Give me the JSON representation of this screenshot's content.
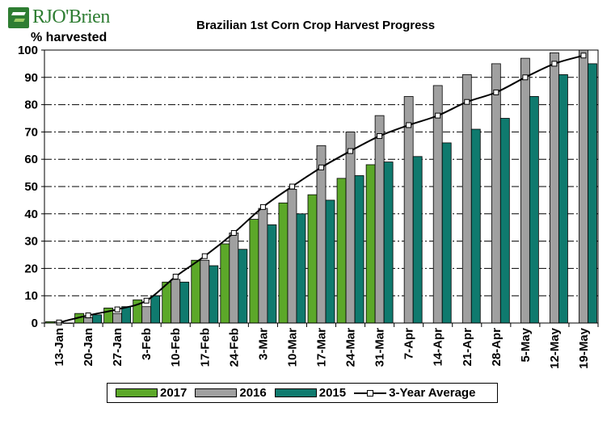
{
  "brand": {
    "logo_text": "RJO'Brien"
  },
  "chart_data": {
    "type": "bar",
    "title": "Brazilian 1st Corn Crop Harvest Progress",
    "ylabel": "% harvested",
    "xlabel": "",
    "ylim": [
      0,
      100
    ],
    "yticks": [
      0,
      10,
      20,
      30,
      40,
      50,
      60,
      70,
      80,
      90,
      100
    ],
    "grid": "horizontal dash-dot",
    "legend_position": "bottom",
    "categories": [
      "13-Jan",
      "20-Jan",
      "27-Jan",
      "3-Feb",
      "10-Feb",
      "17-Feb",
      "24-Feb",
      "3-Mar",
      "10-Mar",
      "17-Mar",
      "24-Mar",
      "31-Mar",
      "7-Apr",
      "14-Apr",
      "21-Apr",
      "28-Apr",
      "5-May",
      "12-May",
      "19-May"
    ],
    "series": [
      {
        "name": "2017",
        "kind": "bar",
        "color": "#5ca829",
        "values": [
          0.5,
          3.5,
          5.5,
          8.5,
          15,
          23,
          29,
          38,
          44,
          47,
          53,
          58,
          null,
          null,
          null,
          null,
          null,
          null,
          null
        ]
      },
      {
        "name": "2016",
        "kind": "bar",
        "color": "#a0a0a0",
        "values": [
          0.5,
          2,
          3.5,
          6,
          16,
          23,
          33,
          42,
          49,
          65,
          70,
          76,
          83,
          87,
          91,
          95,
          97,
          99,
          100
        ]
      },
      {
        "name": "2015",
        "kind": "bar",
        "color": "#0f7a6e",
        "values": [
          0,
          3,
          6,
          10,
          15,
          21,
          27,
          36,
          40,
          45,
          54,
          59,
          61,
          66,
          71,
          75,
          83,
          91,
          95
        ]
      },
      {
        "name": "3-Year Average",
        "kind": "line",
        "color": "#000000",
        "values": [
          0.2,
          2.8,
          5,
          8.2,
          17,
          24.5,
          33,
          42.5,
          50,
          57,
          63,
          68.5,
          72.5,
          76,
          81,
          84.5,
          90,
          95,
          98
        ]
      }
    ]
  }
}
